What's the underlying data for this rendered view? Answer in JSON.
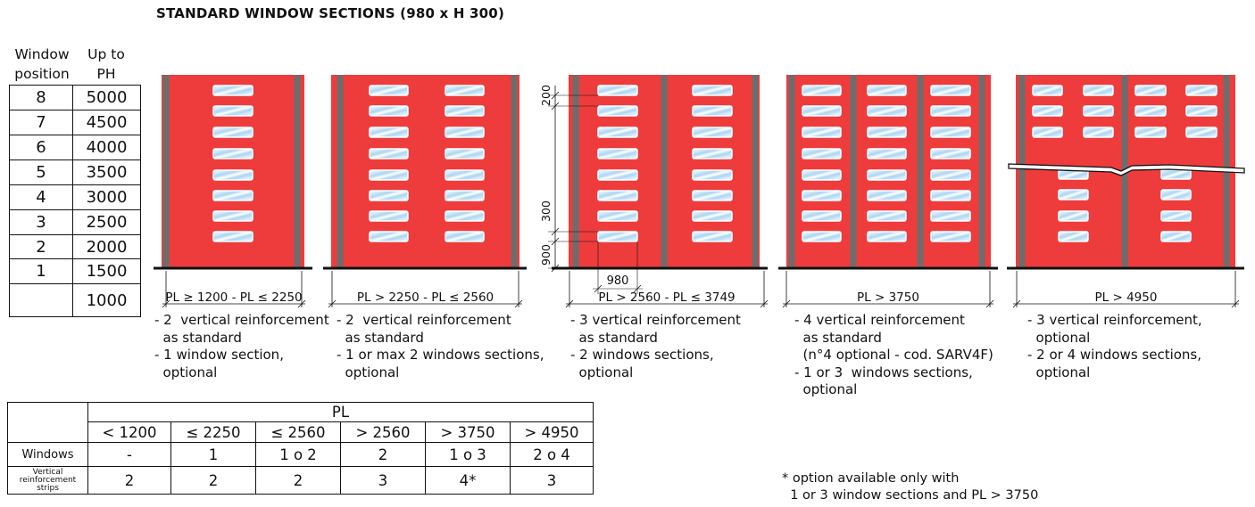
{
  "title": "STANDARD WINDOW SECTIONS (980 x H 300)",
  "position_table": {
    "header_col1": "Window\nposition",
    "header_col2": "Up to\nPH",
    "rows": [
      {
        "pos": "8",
        "ph": "5000"
      },
      {
        "pos": "7",
        "ph": "4500"
      },
      {
        "pos": "6",
        "ph": "4000"
      },
      {
        "pos": "5",
        "ph": "3500"
      },
      {
        "pos": "4",
        "ph": "3000"
      },
      {
        "pos": "3",
        "ph": "2500"
      },
      {
        "pos": "2",
        "ph": "2000"
      },
      {
        "pos": "1",
        "ph": "1500"
      },
      {
        "pos": "",
        "ph": "1000"
      }
    ]
  },
  "colors": {
    "door_red": "#ee3c3c",
    "reinforcement_grey": "#6d6d6d",
    "window_blue": "#a9d6f4",
    "line": "#111111"
  },
  "panels": [
    {
      "range_label": "PL ≥ 1200 - PL ≤ 2250",
      "reinforcements": 2,
      "window_columns": 1,
      "window_rows": 8,
      "notes": "- 2  vertical reinforcement\n  as standard\n- 1 window section,\n  optional"
    },
    {
      "range_label": "PL > 2250 - PL ≤ 2560",
      "reinforcements": 2,
      "window_columns": 2,
      "window_rows": 8,
      "notes": "- 2  vertical reinforcement\n  as standard\n- 1 or max 2 windows sections,\n  optional"
    },
    {
      "range_label": "PL > 2560 - PL ≤ 3749",
      "reinforcements": 3,
      "window_columns": 2,
      "window_rows": 8,
      "notes": "- 3 vertical reinforcement\n  as standard\n- 2 windows sections,\n  optional",
      "dimensions": {
        "gap": "200",
        "window_height": "300",
        "bottom": "900",
        "window_width": "980"
      }
    },
    {
      "range_label": "PL > 3750",
      "reinforcements": 4,
      "window_columns": 3,
      "window_rows": 8,
      "notes": "- 4 vertical reinforcement\n  as standard\n  (n°4 optional - cod. SARV4F)\n- 1 or 3  windows sections,\n  optional"
    },
    {
      "range_label": "PL > 4950",
      "reinforcements": 3,
      "window_columns": 4,
      "window_rows": 8,
      "break": true,
      "notes": "- 3 vertical reinforcement,\n  optional\n- 2 or 4 windows sections,\n  optional"
    }
  ],
  "pl_table": {
    "pl_header": "PL",
    "columns": [
      "<  1200",
      "≤  2250",
      "≤  2560",
      ">  2560",
      ">  3750",
      "> 4950"
    ],
    "rows": [
      {
        "label": "Windows",
        "values": [
          "-",
          "1",
          "1 o 2",
          "2",
          "1 o 3",
          "2 o 4"
        ]
      },
      {
        "label": "Vertical\nreinforcement\nstrips",
        "values": [
          "2",
          "2",
          "2",
          "3",
          "4*",
          "3"
        ]
      }
    ]
  },
  "footnote": "* option available only with\n  1 or 3 window sections and PL > 3750"
}
